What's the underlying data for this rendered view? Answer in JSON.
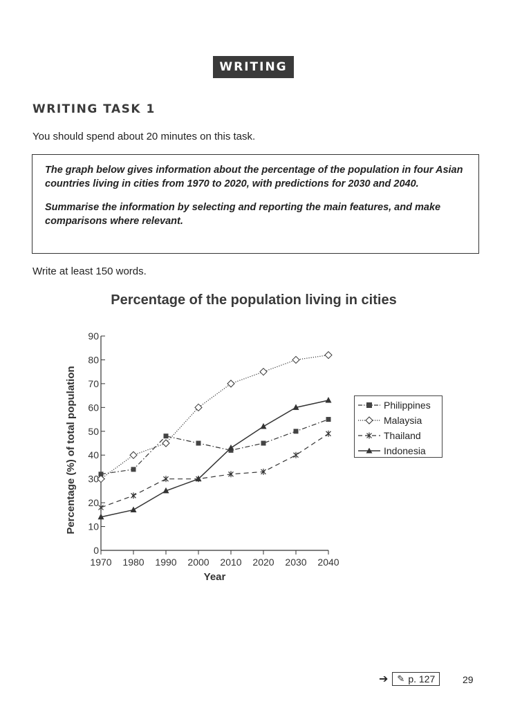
{
  "section_banner": "WRITING",
  "task_heading": "WRITING TASK 1",
  "time_instruction": "You should spend about 20 minutes on this task.",
  "prompt": {
    "paragraph1": "The graph below gives information about the percentage of the population in four Asian countries living in cities from 1970 to 2020, with predictions for 2030 and 2040.",
    "paragraph2": "Summarise the information by selecting and reporting the main features, and make comparisons where relevant."
  },
  "word_instruction": "Write at least 150 words.",
  "chart_data": {
    "type": "line",
    "title": "Percentage of the population living in cities",
    "xlabel": "Year",
    "ylabel": "Percentage (%) of total population",
    "x": [
      1970,
      1980,
      1990,
      2000,
      2010,
      2020,
      2030,
      2040
    ],
    "ylim": [
      0,
      90
    ],
    "yticks": [
      0,
      10,
      20,
      30,
      40,
      50,
      60,
      70,
      80,
      90
    ],
    "grid": false,
    "legend_position": "right",
    "series": [
      {
        "name": "Philippines",
        "values": [
          32,
          34,
          48,
          45,
          42,
          45,
          50,
          55
        ],
        "marker": "square",
        "line_style": "dash-dot"
      },
      {
        "name": "Malaysia",
        "values": [
          30,
          40,
          45,
          60,
          70,
          75,
          80,
          82
        ],
        "marker": "diamond",
        "line_style": "dotted"
      },
      {
        "name": "Thailand",
        "values": [
          18,
          23,
          30,
          30,
          32,
          33,
          40,
          49
        ],
        "marker": "asterisk",
        "line_style": "dashed"
      },
      {
        "name": "Indonesia",
        "values": [
          14,
          17,
          25,
          30,
          43,
          52,
          60,
          63
        ],
        "marker": "triangle",
        "line_style": "solid"
      }
    ]
  },
  "footer": {
    "arrow_icon": "right-arrow-icon",
    "pencil_icon": "pencil-icon",
    "page_ref": "p. 127",
    "page_number": "29"
  }
}
